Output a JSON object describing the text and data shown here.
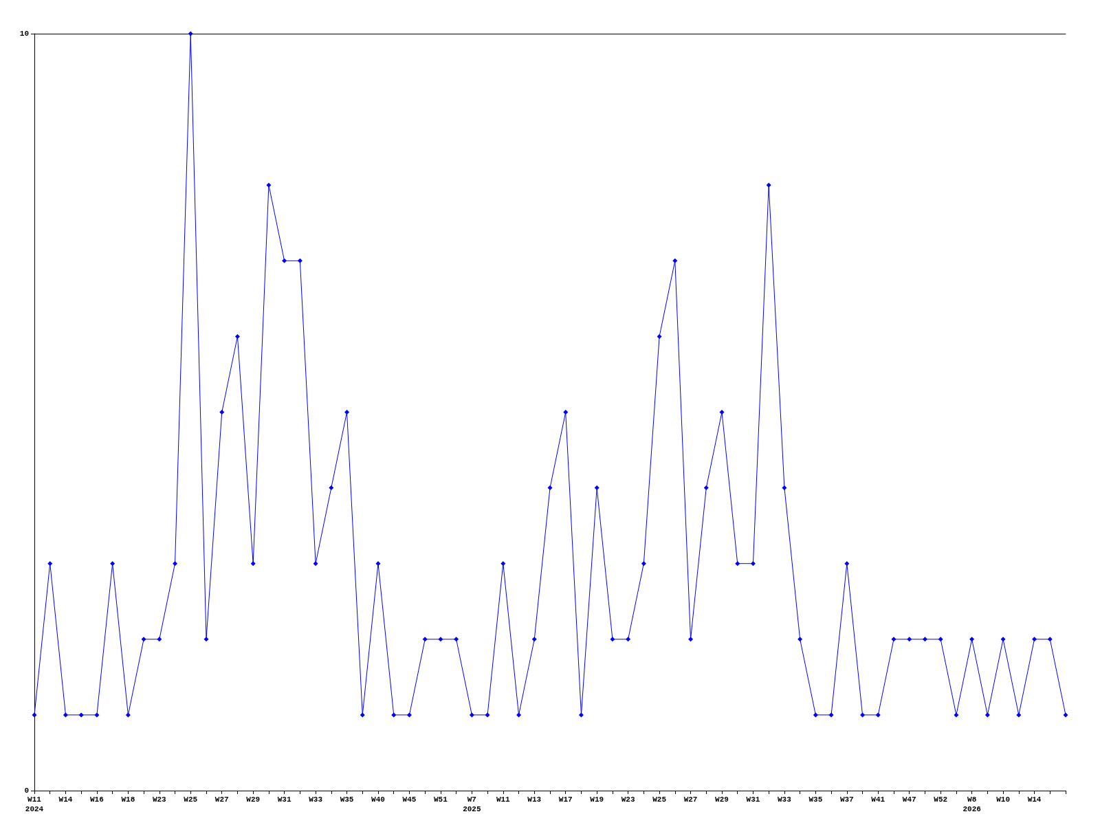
{
  "chart_data": {
    "type": "line",
    "categories": [
      "W11\n2024",
      null,
      "W14",
      null,
      "W16",
      null,
      "W18",
      null,
      "W23",
      null,
      "W25",
      null,
      "W27",
      null,
      "W29",
      null,
      "W31",
      null,
      "W33",
      null,
      "W35",
      null,
      "W40",
      null,
      "W45",
      null,
      "W51",
      null,
      "W7\n2025",
      null,
      "W11",
      null,
      "W13",
      null,
      "W17",
      null,
      "W19",
      null,
      "W23",
      null,
      "W25",
      null,
      "W27",
      null,
      "W29",
      null,
      "W31",
      null,
      "W33",
      null,
      "W35",
      null,
      "W37",
      null,
      "W41",
      null,
      "W47",
      null,
      "W52",
      null,
      "W8\n2026",
      null,
      "W10",
      null,
      "W14",
      null,
      null
    ],
    "values": [
      1,
      3,
      1,
      1,
      1,
      3,
      1,
      2,
      2,
      3,
      10,
      2,
      5,
      6,
      3,
      8,
      7,
      7,
      3,
      4,
      5,
      1,
      3,
      1,
      1,
      2,
      2,
      2,
      1,
      1,
      3,
      1,
      2,
      4,
      5,
      1,
      4,
      2,
      2,
      3,
      6,
      7,
      2,
      4,
      5,
      3,
      3,
      8,
      4,
      2,
      1,
      1,
      3,
      1,
      1,
      2,
      2,
      2,
      2,
      1,
      2,
      1,
      2,
      1,
      2,
      2,
      1
    ],
    "color": "#0000ff",
    "ylim": [
      0,
      10
    ],
    "yticks": [
      0,
      10
    ],
    "marker": "diamond",
    "line_style": "solid"
  }
}
